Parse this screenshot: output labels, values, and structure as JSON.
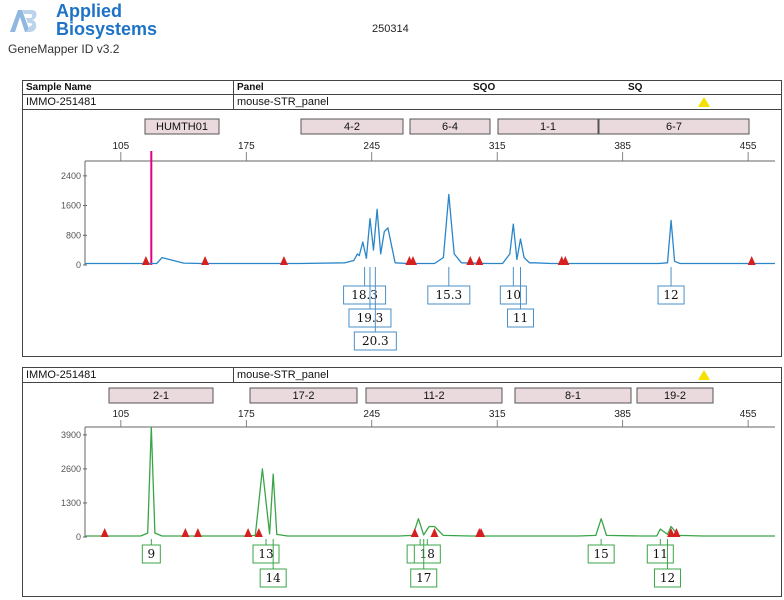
{
  "header": {
    "brand_line1": "Applied",
    "brand_line2": "Biosystems",
    "software": "GeneMapper ID v3.2",
    "run_id": "250314"
  },
  "table": {
    "col_sample": "Sample Name",
    "col_panel": "Panel",
    "col_sqo": "SQO",
    "col_sq": "SQ"
  },
  "panel1": {
    "sample": "IMMO-251481",
    "panel": "mouse-STR_panel",
    "markers": [
      "HUMTH01",
      "4-2",
      "6-4",
      "1-1",
      "6-7"
    ],
    "x_ticks": [
      105,
      175,
      245,
      315,
      385,
      455
    ],
    "y_ticks": [
      0,
      800,
      1600,
      2400
    ],
    "alleles": [
      "18.3",
      "19.3",
      "20.3",
      "15.3",
      "10",
      "11",
      "12"
    ]
  },
  "panel2": {
    "sample": "IMMO-251481",
    "panel": "mouse-STR_panel",
    "markers": [
      "2-1",
      "17-2",
      "11-2",
      "8-1",
      "19-2"
    ],
    "x_ticks": [
      105,
      175,
      245,
      315,
      385,
      455
    ],
    "y_ticks": [
      0,
      1300,
      2600,
      3900
    ],
    "alleles": [
      "9",
      "13",
      "14",
      "15",
      "18",
      "17",
      "15",
      "11",
      "12"
    ]
  },
  "colors": {
    "brand": "#1e73c7",
    "blue_trace": "#2a86c9",
    "green_trace": "#3aa548",
    "size_marker": "#e6007e",
    "bin_triangle": "#d62020",
    "warning": "#f5e000",
    "marker_fill": "#ead9dd"
  },
  "chart_data": [
    {
      "type": "line",
      "title": "",
      "xlabel": "",
      "ylabel": "",
      "xlim": [
        85,
        470
      ],
      "ylim": [
        0,
        2800
      ],
      "series": [
        {
          "x": [
            85,
            118,
            125,
            128,
            140,
            150,
            175,
            205,
            230,
            235,
            237,
            238,
            240,
            242,
            244,
            246,
            248,
            250,
            252,
            254,
            258,
            265,
            280,
            285,
            288,
            291,
            295,
            310,
            318,
            322,
            324,
            326,
            328,
            330,
            333,
            336,
            345,
            360,
            390,
            405,
            410,
            412,
            414,
            417,
            420,
            440,
            470
          ],
          "y": [
            40,
            40,
            40,
            200,
            50,
            40,
            40,
            40,
            60,
            120,
            300,
            250,
            620,
            180,
            1250,
            400,
            1500,
            300,
            900,
            1000,
            60,
            40,
            40,
            200,
            1900,
            300,
            60,
            40,
            40,
            300,
            1100,
            150,
            700,
            200,
            60,
            60,
            40,
            40,
            40,
            40,
            60,
            1200,
            100,
            40,
            40,
            40,
            40
          ]
        }
      ],
      "size_marker_x": 122,
      "bin_triangles_x": [
        119,
        152,
        196,
        266,
        268,
        300,
        305,
        351,
        353,
        457
      ],
      "allele_calls": [
        {
          "label": "18.3",
          "x": 241
        },
        {
          "label": "19.3",
          "x": 244
        },
        {
          "label": "20.3",
          "x": 247
        },
        {
          "label": "15.3",
          "x": 288
        },
        {
          "label": "10",
          "x": 324
        },
        {
          "label": "11",
          "x": 328
        },
        {
          "label": "12",
          "x": 412
        }
      ]
    },
    {
      "type": "line",
      "title": "",
      "xlabel": "",
      "ylabel": "",
      "xlim": [
        85,
        470
      ],
      "ylim": [
        0,
        4200
      ],
      "series": [
        {
          "x": [
            85,
            110,
            116,
            120,
            122,
            124,
            128,
            150,
            175,
            180,
            184,
            188,
            190,
            192,
            198,
            230,
            240,
            250,
            260,
            268,
            271,
            274,
            277,
            280,
            285,
            300,
            330,
            360,
            370,
            373,
            376,
            395,
            404,
            406,
            410,
            412,
            416,
            430,
            470
          ],
          "y": [
            40,
            40,
            40,
            150,
            4200,
            150,
            40,
            40,
            40,
            60,
            2600,
            120,
            2400,
            100,
            40,
            40,
            40,
            40,
            40,
            60,
            700,
            80,
            400,
            400,
            60,
            40,
            40,
            40,
            60,
            700,
            60,
            40,
            40,
            300,
            100,
            400,
            60,
            40,
            40
          ]
        }
      ],
      "bin_triangles_x": [
        96,
        141,
        148,
        176,
        182,
        269,
        280,
        305,
        306,
        412,
        415
      ],
      "allele_calls": [
        {
          "label": "9",
          "x": 122
        },
        {
          "label": "13",
          "x": 186
        },
        {
          "label": "14",
          "x": 190
        },
        {
          "label": "15",
          "x": 272
        },
        {
          "label": "18",
          "x": 276
        },
        {
          "label": "17",
          "x": 274
        },
        {
          "label": "15",
          "x": 373
        },
        {
          "label": "11",
          "x": 406
        },
        {
          "label": "12",
          "x": 410
        }
      ]
    }
  ]
}
